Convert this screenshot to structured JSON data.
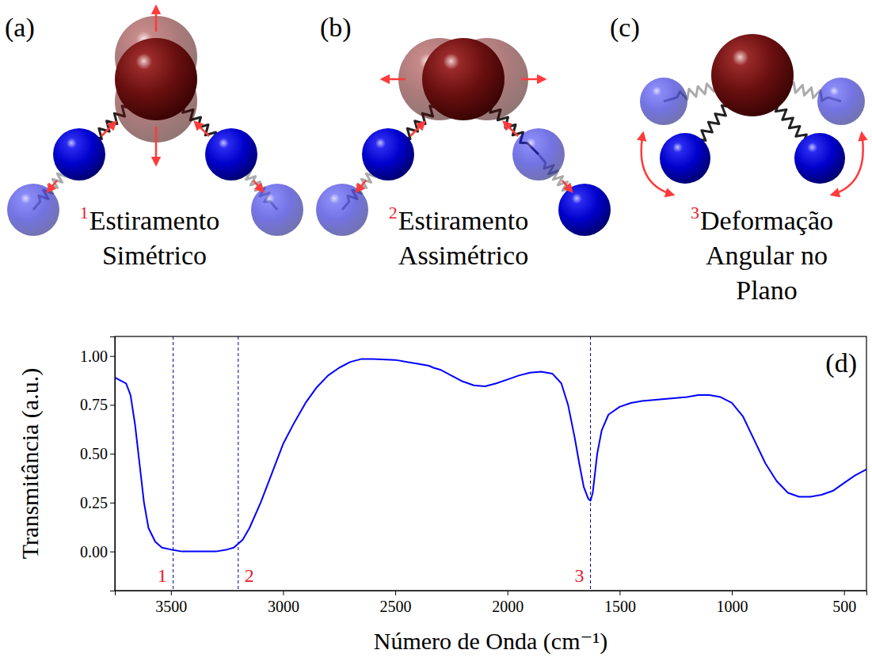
{
  "diagrams": [
    {
      "letter": "(a)",
      "number": "1",
      "lines": [
        "Estiramento",
        "Simétrico"
      ]
    },
    {
      "letter": "(b)",
      "number": "2",
      "lines": [
        "Estiramento",
        "Assimétrico"
      ]
    },
    {
      "letter": "(c)",
      "number": "3",
      "lines": [
        "Deformação",
        "Angular no",
        "Plano"
      ]
    }
  ],
  "chart_data": {
    "type": "line",
    "panel_label": "(d)",
    "xlabel": "Número de Onda (cm⁻¹)",
    "ylabel": "Transmitância (a.u.)",
    "color": "#0000ff",
    "xlim": [
      3750,
      400
    ],
    "ylim": [
      -0.2,
      1.1
    ],
    "xticks": [
      3500,
      3000,
      2500,
      2000,
      1500,
      1000,
      500
    ],
    "yticks": [
      {
        "value": 0,
        "label": "0.00"
      },
      {
        "value": 0.25,
        "label": "0.25"
      },
      {
        "value": 0.5,
        "label": "0.50"
      },
      {
        "value": 0.75,
        "label": "0.75"
      },
      {
        "value": 1,
        "label": "1.00"
      }
    ],
    "grid": false,
    "annotations": [
      {
        "x": 3490,
        "label": "1"
      },
      {
        "x": 3200,
        "label": "2"
      },
      {
        "x": 1630,
        "label": "3"
      }
    ],
    "x": [
      3750,
      3700,
      3680,
      3660,
      3640,
      3620,
      3600,
      3570,
      3540,
      3500,
      3450,
      3400,
      3300,
      3250,
      3220,
      3180,
      3150,
      3100,
      3050,
      3000,
      2950,
      2900,
      2850,
      2800,
      2750,
      2700,
      2650,
      2600,
      2500,
      2400,
      2350,
      2330,
      2300,
      2250,
      2200,
      2150,
      2100,
      2050,
      2000,
      1950,
      1900,
      1850,
      1800,
      1760,
      1730,
      1700,
      1680,
      1660,
      1640,
      1630,
      1620,
      1600,
      1580,
      1550,
      1500,
      1450,
      1400,
      1300,
      1200,
      1150,
      1100,
      1050,
      1000,
      950,
      900,
      850,
      800,
      750,
      700,
      650,
      600,
      550,
      500,
      450,
      400
    ],
    "values": [
      0.89,
      0.86,
      0.8,
      0.65,
      0.45,
      0.25,
      0.12,
      0.05,
      0.02,
      0.01,
      0.0,
      0.0,
      0.0,
      0.01,
      0.02,
      0.06,
      0.12,
      0.25,
      0.4,
      0.55,
      0.66,
      0.76,
      0.84,
      0.9,
      0.94,
      0.97,
      0.985,
      0.985,
      0.98,
      0.96,
      0.95,
      0.94,
      0.93,
      0.9,
      0.87,
      0.85,
      0.845,
      0.86,
      0.88,
      0.9,
      0.915,
      0.92,
      0.91,
      0.86,
      0.75,
      0.58,
      0.45,
      0.33,
      0.27,
      0.26,
      0.3,
      0.5,
      0.62,
      0.7,
      0.74,
      0.76,
      0.77,
      0.78,
      0.79,
      0.8,
      0.8,
      0.79,
      0.76,
      0.69,
      0.57,
      0.45,
      0.36,
      0.3,
      0.28,
      0.28,
      0.29,
      0.31,
      0.35,
      0.39,
      0.42
    ]
  }
}
